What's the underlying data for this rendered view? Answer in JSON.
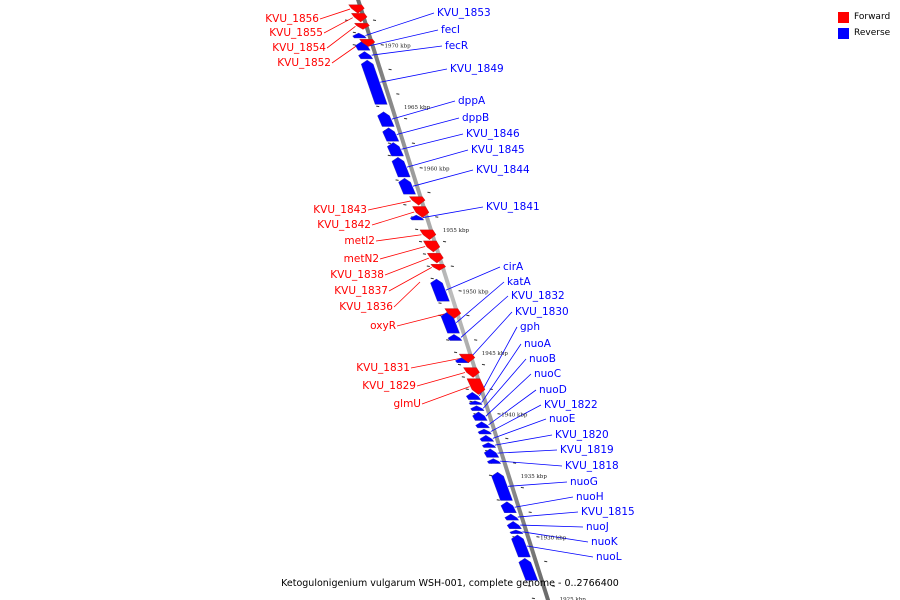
{
  "legend": {
    "forward_label": "Forward",
    "reverse_label": "Reverse",
    "forward_color": "#ff0000",
    "reverse_color": "#0000ff"
  },
  "caption": "Ketogulonigenium vulgarum WSH-001, complete genome - 0..2766400",
  "axis": {
    "label_suffix": " kbp",
    "ticks": [
      1970,
      1965,
      1960,
      1955,
      1950,
      1945,
      1940,
      1935,
      1930,
      1925
    ]
  },
  "forward_genes": [
    {
      "name": "KVU_1856",
      "kbp_start": 1973.3,
      "kbp_end": 1972.6
    },
    {
      "name": "KVU_1855",
      "kbp_start": 1972.6,
      "kbp_end": 1971.9
    },
    {
      "name": "KVU_1854",
      "kbp_start": 1971.8,
      "kbp_end": 1971.3
    },
    {
      "name": "KVU_1852",
      "kbp_start": 1970.5,
      "kbp_end": 1969.9
    },
    {
      "name": "KVU_1843",
      "kbp_start": 1957.7,
      "kbp_end": 1957.0
    },
    {
      "name": "KVU_1842",
      "kbp_start": 1956.9,
      "kbp_end": 1956.0
    },
    {
      "name": "metI2",
      "kbp_start": 1955.0,
      "kbp_end": 1954.2
    },
    {
      "name": "metN2",
      "kbp_start": 1954.1,
      "kbp_end": 1953.2
    },
    {
      "name": "KVU_1838",
      "kbp_start": 1953.1,
      "kbp_end": 1952.3
    },
    {
      "name": "KVU_1837",
      "kbp_start": 1952.2,
      "kbp_end": 1951.7
    },
    {
      "name": "oxyR",
      "kbp_start": 1948.6,
      "kbp_end": 1947.8
    },
    {
      "name": "KVU_1831",
      "kbp_start": 1944.9,
      "kbp_end": 1944.2
    },
    {
      "name": "KVU_1829",
      "kbp_start": 1943.8,
      "kbp_end": 1943.0
    },
    {
      "name": "glmU",
      "kbp_start": 1942.9,
      "kbp_end": 1941.6
    }
  ],
  "forward_labels_only": [
    "KVU_1836"
  ],
  "reverse_genes": [
    {
      "name": "KVU_1853",
      "kbp_start": 1971.0,
      "kbp_end": 1970.6
    },
    {
      "name": "fecI",
      "kbp_start": 1970.3,
      "kbp_end": 1969.6
    },
    {
      "name": "fecR",
      "kbp_start": 1969.5,
      "kbp_end": 1968.9
    },
    {
      "name": "KVU_1849",
      "kbp_start": 1968.8,
      "kbp_end": 1965.2
    },
    {
      "name": "dppA",
      "kbp_start": 1964.6,
      "kbp_end": 1963.4
    },
    {
      "name": "dppB",
      "kbp_start": 1963.3,
      "kbp_end": 1962.2
    },
    {
      "name": "KVU_1846",
      "kbp_start": 1962.1,
      "kbp_end": 1961.0
    },
    {
      "name": "KVU_1845",
      "kbp_start": 1960.9,
      "kbp_end": 1959.3
    },
    {
      "name": "KVU_1844",
      "kbp_start": 1959.2,
      "kbp_end": 1957.9
    },
    {
      "name": "KVU_1841",
      "kbp_start": 1956.2,
      "kbp_end": 1955.8
    },
    {
      "name": "cirA",
      "kbp_start": 1951.0,
      "kbp_end": 1949.2
    },
    {
      "name": "katA",
      "kbp_start": 1948.3,
      "kbp_end": 1946.6
    },
    {
      "name": "KVU_1832",
      "kbp_start": 1946.5,
      "kbp_end": 1946.0
    },
    {
      "name": "KVU_1830",
      "kbp_start": 1944.6,
      "kbp_end": 1944.2
    },
    {
      "name": "gph",
      "kbp_start": 1941.8,
      "kbp_end": 1941.2
    },
    {
      "name": "nuoA",
      "kbp_start": 1941.1,
      "kbp_end": 1940.8
    },
    {
      "name": "nuoB",
      "kbp_start": 1940.7,
      "kbp_end": 1940.3
    },
    {
      "name": "nuoC",
      "kbp_start": 1940.2,
      "kbp_end": 1939.5
    },
    {
      "name": "nuoD",
      "kbp_start": 1939.4,
      "kbp_end": 1938.9
    },
    {
      "name": "KVU_1822",
      "kbp_start": 1938.8,
      "kbp_end": 1938.4
    },
    {
      "name": "nuoE",
      "kbp_start": 1938.3,
      "kbp_end": 1937.8
    },
    {
      "name": "KVU_1820",
      "kbp_start": 1937.7,
      "kbp_end": 1937.3
    },
    {
      "name": "KVU_1819",
      "kbp_start": 1937.2,
      "kbp_end": 1936.5
    },
    {
      "name": "KVU_1818",
      "kbp_start": 1936.4,
      "kbp_end": 1936.0
    },
    {
      "name": "nuoG",
      "kbp_start": 1935.3,
      "kbp_end": 1933.0
    },
    {
      "name": "nuoH",
      "kbp_start": 1932.9,
      "kbp_end": 1932.0
    },
    {
      "name": "KVU_1815",
      "kbp_start": 1931.9,
      "kbp_end": 1931.4
    },
    {
      "name": "nuoJ",
      "kbp_start": 1931.3,
      "kbp_end": 1930.7
    },
    {
      "name": "nuoK",
      "kbp_start": 1930.6,
      "kbp_end": 1930.3
    },
    {
      "name": "nuoL",
      "kbp_start": 1930.2,
      "kbp_end": 1928.4
    },
    {
      "name": "",
      "kbp_start": 1928.3,
      "kbp_end": 1926.5
    }
  ]
}
